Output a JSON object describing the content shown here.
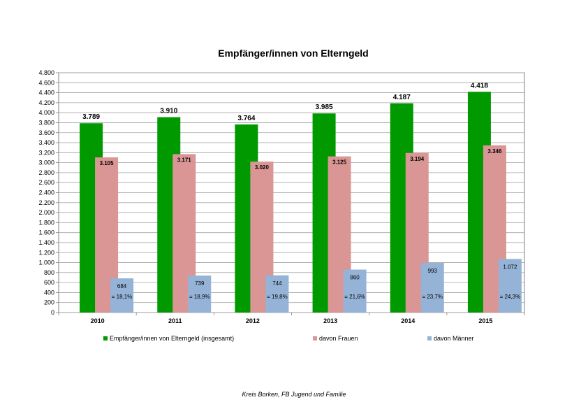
{
  "chart_data": {
    "type": "bar",
    "title": "Empfänger/innen von Elterngeld",
    "categories": [
      "2010",
      "2011",
      "2012",
      "2013",
      "2014",
      "2015"
    ],
    "series": [
      {
        "name": "Empfänger/innen von Elterngeld (insgesamt)",
        "color": "#009900",
        "values": [
          3789,
          3910,
          3764,
          3985,
          4187,
          4418
        ],
        "labels": [
          "3.789",
          "3.910",
          "3.764",
          "3.985",
          "4.187",
          "4.418"
        ]
      },
      {
        "name": "davon Frauen",
        "color": "#d99694",
        "values": [
          3105,
          3171,
          3020,
          3125,
          3194,
          3346
        ],
        "labels": [
          "3.105",
          "3.171",
          "3.020",
          "3.125",
          "3.194",
          "3.346"
        ]
      },
      {
        "name": "davon Männer",
        "color": "#95b3d7",
        "values": [
          684,
          739,
          744,
          860,
          993,
          1072
        ],
        "labels": [
          "684",
          "739",
          "744",
          "860",
          "993",
          "1.072"
        ],
        "share_labels": [
          "= 18,1%",
          "= 18,9%",
          "= 19,8%",
          "= 21,6%",
          "= 23,7%",
          "= 24,3%"
        ]
      }
    ],
    "ylim": [
      0,
      4800
    ],
    "yticks": [
      0,
      200,
      400,
      600,
      800,
      1000,
      1200,
      1400,
      1600,
      1800,
      2000,
      2200,
      2400,
      2600,
      2800,
      3000,
      3200,
      3400,
      3600,
      3800,
      4000,
      4200,
      4400,
      4600,
      4800
    ],
    "ytick_labels": [
      "0",
      "200",
      "400",
      "600",
      "800",
      "1.000",
      "1.200",
      "1.400",
      "1.600",
      "1.800",
      "2.000",
      "2.200",
      "2.400",
      "2.600",
      "2.800",
      "3.000",
      "3.200",
      "3.400",
      "3.600",
      "3.800",
      "4.000",
      "4.200",
      "4.400",
      "4.600",
      "4.800"
    ],
    "grid": true,
    "legend": "bottom"
  },
  "footer": "Kreis Borken, FB Jugend und Familie"
}
